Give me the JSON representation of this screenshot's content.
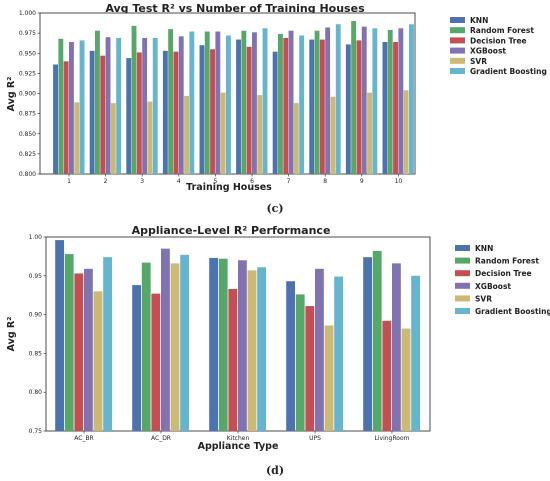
{
  "chart_data": [
    {
      "type": "bar",
      "title": "Avg Test R² vs Number of Training Houses",
      "xlabel": "Training Houses",
      "ylabel": "Avg R²",
      "ylim": [
        0.8,
        1.0
      ],
      "yticks": [
        "0.800",
        "0.825",
        "0.850",
        "0.875",
        "0.900",
        "0.925",
        "0.950",
        "0.975",
        "1.000"
      ],
      "categories": [
        "1",
        "2",
        "3",
        "4",
        "5",
        "6",
        "7",
        "8",
        "9",
        "10"
      ],
      "legend_position": "right",
      "grid": false,
      "series": [
        {
          "name": "KNN",
          "color": "#4c72b0",
          "values": [
            0.936,
            0.953,
            0.944,
            0.953,
            0.96,
            0.967,
            0.952,
            0.967,
            0.961,
            0.964
          ]
        },
        {
          "name": "Random Forest",
          "color": "#55a868",
          "values": [
            0.968,
            0.978,
            0.984,
            0.98,
            0.977,
            0.978,
            0.974,
            0.978,
            0.99,
            0.979
          ]
        },
        {
          "name": "Decision Tree",
          "color": "#c44e52",
          "values": [
            0.94,
            0.947,
            0.951,
            0.952,
            0.955,
            0.958,
            0.969,
            0.967,
            0.966,
            0.964
          ]
        },
        {
          "name": "XGBoost",
          "color": "#8172b2",
          "values": [
            0.964,
            0.97,
            0.969,
            0.971,
            0.977,
            0.976,
            0.978,
            0.982,
            0.983,
            0.981
          ]
        },
        {
          "name": "SVR",
          "color": "#ccb974",
          "values": [
            0.889,
            0.888,
            0.89,
            0.897,
            0.901,
            0.898,
            0.888,
            0.896,
            0.901,
            0.904
          ]
        },
        {
          "name": "Gradient Boosting",
          "color": "#64b5cd",
          "values": [
            0.966,
            0.969,
            0.969,
            0.977,
            0.972,
            0.981,
            0.972,
            0.986,
            0.981,
            0.986
          ]
        }
      ],
      "sub_label": "(c)"
    },
    {
      "type": "bar",
      "title": "Appliance-Level R² Performance",
      "xlabel": "Appliance Type",
      "ylabel": "Avg R²",
      "ylim": [
        0.75,
        1.0
      ],
      "yticks": [
        "0.75",
        "0.80",
        "0.85",
        "0.90",
        "0.95",
        "1.00"
      ],
      "categories": [
        "AC_BR",
        "AC_DR",
        "Kitchen",
        "UPS",
        "LivingRoom"
      ],
      "legend_position": "right",
      "grid": false,
      "series": [
        {
          "name": "KNN",
          "color": "#4c72b0",
          "values": [
            0.996,
            0.938,
            0.973,
            0.943,
            0.974
          ]
        },
        {
          "name": "Random Forest",
          "color": "#55a868",
          "values": [
            0.978,
            0.967,
            0.972,
            0.926,
            0.982
          ]
        },
        {
          "name": "Decision Tree",
          "color": "#c44e52",
          "values": [
            0.953,
            0.927,
            0.933,
            0.911,
            0.892
          ]
        },
        {
          "name": "XGBoost",
          "color": "#8172b2",
          "values": [
            0.959,
            0.985,
            0.97,
            0.959,
            0.966
          ]
        },
        {
          "name": "SVR",
          "color": "#ccb974",
          "values": [
            0.93,
            0.966,
            0.957,
            0.886,
            0.882
          ]
        },
        {
          "name": "Gradient Boosting",
          "color": "#64b5cd",
          "values": [
            0.974,
            0.977,
            0.961,
            0.949,
            0.95
          ]
        }
      ],
      "sub_label": "(d)"
    }
  ]
}
